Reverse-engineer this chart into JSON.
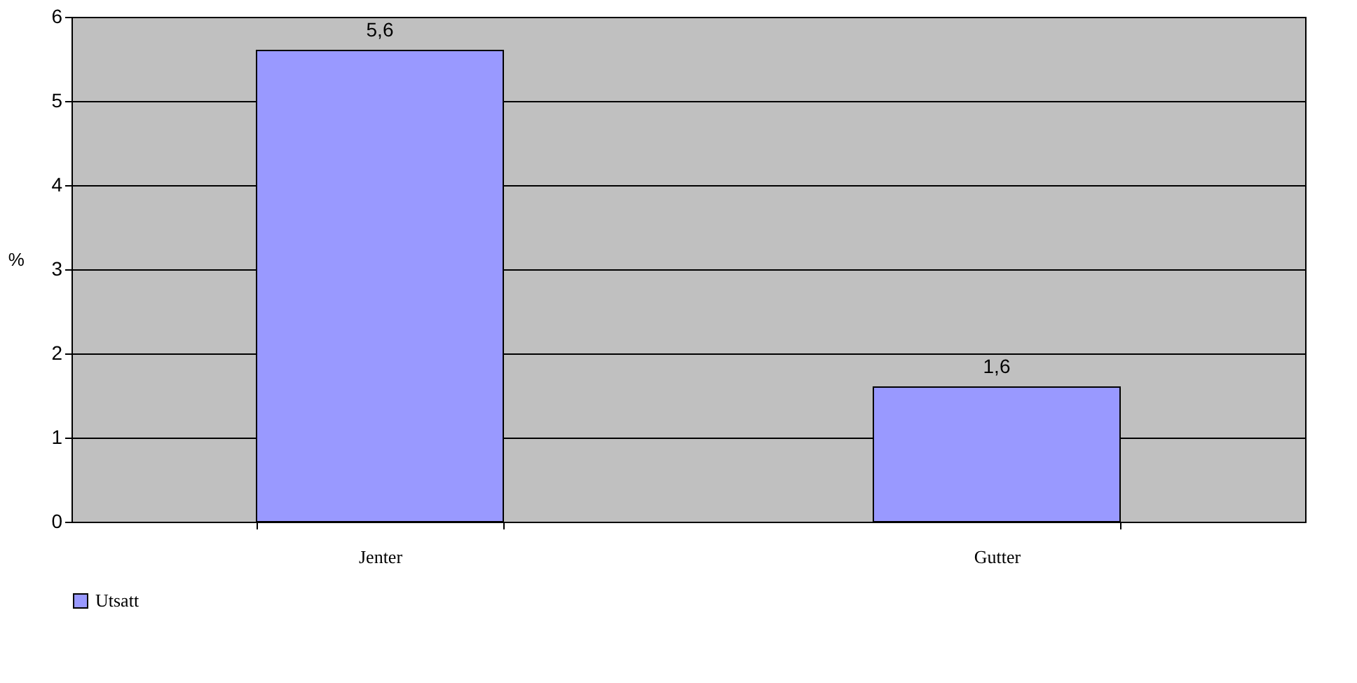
{
  "chart_data": {
    "type": "bar",
    "ylabel": "%",
    "categories": [
      "Jenter",
      "Gutter"
    ],
    "series": [
      {
        "name": "Utsatt",
        "color": "#9999ff",
        "values": [
          5.6,
          1.6
        ],
        "value_labels": [
          "5,6",
          "1,6"
        ]
      }
    ],
    "ylim": [
      0,
      6
    ],
    "yticks": [
      0,
      1,
      2,
      3,
      4,
      5,
      6
    ],
    "grid": "y",
    "legend": "bottom"
  }
}
